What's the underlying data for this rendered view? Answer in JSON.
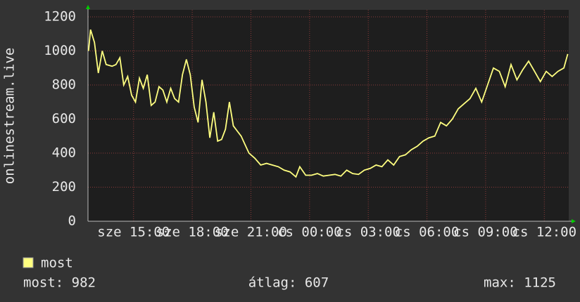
{
  "chart_data": {
    "type": "line",
    "y_label": "onlinestream.live",
    "x": [
      12.7,
      12.8,
      13.0,
      13.2,
      13.4,
      13.6,
      13.9,
      14.1,
      14.3,
      14.5,
      14.7,
      14.9,
      15.1,
      15.3,
      15.5,
      15.7,
      15.9,
      16.1,
      16.3,
      16.5,
      16.7,
      16.9,
      17.1,
      17.3,
      17.5,
      17.7,
      17.9,
      18.1,
      18.3,
      18.5,
      18.7,
      18.9,
      19.1,
      19.3,
      19.5,
      19.7,
      19.9,
      20.1,
      20.3,
      20.5,
      20.7,
      20.9,
      21.2,
      21.5,
      21.8,
      22.1,
      22.4,
      22.7,
      23.0,
      23.3,
      23.5,
      23.8,
      24.1,
      24.4,
      24.7,
      25.0,
      25.3,
      25.6,
      25.9,
      26.2,
      26.5,
      26.8,
      27.1,
      27.4,
      27.7,
      28.0,
      28.3,
      28.6,
      28.9,
      29.2,
      29.5,
      29.8,
      30.1,
      30.4,
      30.7,
      31.0,
      31.3,
      31.6,
      31.9,
      32.2,
      32.5,
      32.8,
      33.1,
      33.4,
      33.7,
      34.0,
      34.3,
      34.6,
      34.9,
      35.2,
      35.5,
      35.8,
      36.1,
      36.4,
      36.7,
      37.0,
      37.2
    ],
    "series": [
      {
        "name": "most",
        "color": "#ffff80",
        "values": [
          1000,
          1125,
          1050,
          870,
          1000,
          920,
          910,
          920,
          960,
          800,
          850,
          740,
          700,
          840,
          780,
          860,
          680,
          700,
          790,
          770,
          700,
          780,
          720,
          700,
          860,
          950,
          860,
          670,
          580,
          830,
          700,
          490,
          640,
          470,
          480,
          540,
          700,
          560,
          530,
          500,
          450,
          400,
          370,
          330,
          340,
          330,
          320,
          300,
          290,
          260,
          320,
          270,
          270,
          280,
          265,
          270,
          275,
          265,
          300,
          280,
          275,
          300,
          310,
          330,
          320,
          360,
          330,
          380,
          390,
          420,
          440,
          470,
          490,
          500,
          580,
          560,
          600,
          660,
          690,
          720,
          780,
          700,
          800,
          900,
          880,
          790,
          920,
          830,
          890,
          940,
          880,
          820,
          880,
          850,
          880,
          900,
          982
        ]
      }
    ],
    "xlim": [
      12.67,
      37.25
    ],
    "xticks": [
      {
        "value": 15,
        "label": "sze 15:00"
      },
      {
        "value": 18,
        "label": "sze 18:00"
      },
      {
        "value": 21,
        "label": "sze 21:00"
      },
      {
        "value": 24,
        "label": "cs 00:00"
      },
      {
        "value": 27,
        "label": "cs 03:00"
      },
      {
        "value": 30,
        "label": "cs 06:00"
      },
      {
        "value": 33,
        "label": "cs 09:00"
      },
      {
        "value": 36,
        "label": "cs 12:00"
      }
    ],
    "ylim": [
      0,
      1200
    ],
    "yticks": [
      0,
      200,
      400,
      600,
      800,
      1000,
      1200
    ],
    "grid": true,
    "stats": [
      "most: 982",
      "átlag: 607",
      "max: 1125"
    ]
  }
}
